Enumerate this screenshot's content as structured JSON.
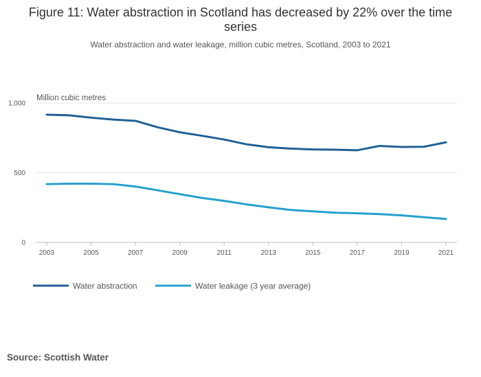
{
  "chart_data": {
    "type": "line",
    "title": "Figure 11: Water abstraction in Scotland has decreased by 22% over the time series",
    "subtitle": "Water abstraction and water leakage, million cubic metres, Scotland, 2003 to 2021",
    "ylabel": "Million cubic metres",
    "xlabel": "",
    "x": [
      2003,
      2004,
      2005,
      2006,
      2007,
      2008,
      2009,
      2010,
      2011,
      2012,
      2013,
      2014,
      2015,
      2016,
      2017,
      2018,
      2019,
      2020,
      2021
    ],
    "x_ticks": [
      "2003",
      "2005",
      "2007",
      "2009",
      "2011",
      "2013",
      "2015",
      "2017",
      "2019",
      "2021"
    ],
    "y_ticks": [
      "0",
      "500",
      "1,000"
    ],
    "ylim": [
      0,
      1000
    ],
    "grid": true,
    "series": [
      {
        "name": "Water abstraction",
        "color": "#206095",
        "values": [
          916,
          912,
          895,
          881,
          872,
          826,
          790,
          765,
          738,
          704,
          683,
          673,
          667,
          665,
          661,
          692,
          685,
          686,
          718
        ]
      },
      {
        "name": "Water leakage (3 year average)",
        "color": "#27a0cc",
        "values": [
          418,
          421,
          421,
          418,
          401,
          374,
          346,
          319,
          298,
          273,
          252,
          233,
          223,
          213,
          209,
          203,
          194,
          181,
          168
        ]
      }
    ],
    "legend_position": "bottom-left"
  },
  "source": "Source: Scottish Water"
}
